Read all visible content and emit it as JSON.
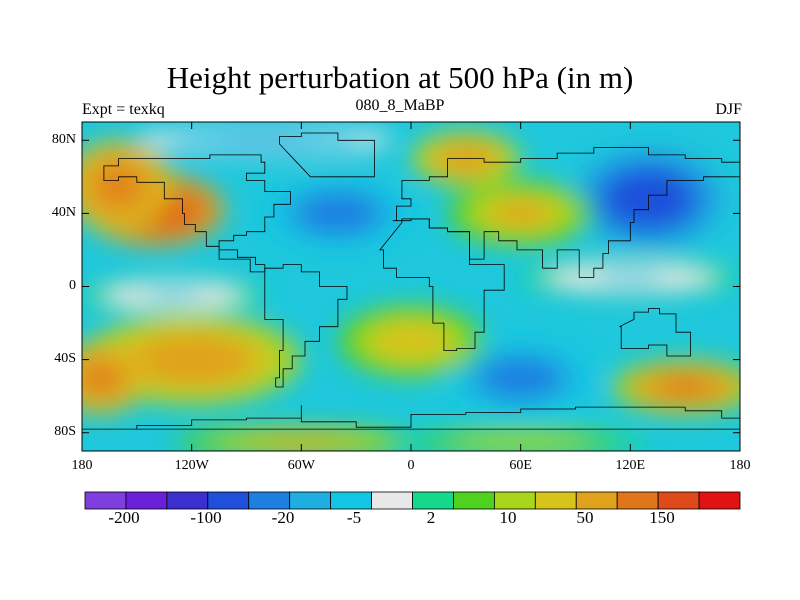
{
  "chart_data": {
    "type": "heatmap",
    "title": "Height perturbation at 500 hPa (in m)",
    "left_string": "Expt = texkq",
    "center_string": "080_8_MaBP",
    "right_string": "DJF",
    "x_range": [
      -180,
      180
    ],
    "y_range": [
      -90,
      90
    ],
    "x_ticks": [
      -180,
      -120,
      -60,
      0,
      60,
      120,
      180
    ],
    "x_tick_labels": [
      "180",
      "120W",
      "60W",
      "0",
      "60E",
      "120E",
      "180"
    ],
    "y_ticks": [
      80,
      40,
      0,
      -40,
      -80
    ],
    "y_tick_labels": [
      "80N",
      "40N",
      "0",
      "40S",
      "80S"
    ],
    "colorbar": {
      "colors": [
        "#7f3fe0",
        "#6a1fd8",
        "#3b2fcf",
        "#1f4fdb",
        "#1f7fe0",
        "#1faee0",
        "#12c6e6",
        "#e8e8e8",
        "#15d88c",
        "#4fd21f",
        "#a8d61a",
        "#d7c31a",
        "#e0a21a",
        "#e0761a",
        "#e04a1a",
        "#e01212"
      ],
      "labels": [
        "-200",
        "-100",
        "-20",
        "-5",
        "2",
        "10",
        "50",
        "150"
      ]
    },
    "anomalies": [
      {
        "lon": -140,
        "lat": 42,
        "value": 165,
        "rx": 38,
        "ry": 20
      },
      {
        "lon": -160,
        "lat": 55,
        "value": 70,
        "rx": 30,
        "ry": 25
      },
      {
        "lon": -40,
        "lat": 40,
        "value": -45,
        "rx": 40,
        "ry": 20
      },
      {
        "lon": 130,
        "lat": 48,
        "value": -90,
        "rx": 42,
        "ry": 28
      },
      {
        "lon": -80,
        "lat": 80,
        "value": -15,
        "rx": 70,
        "ry": 8
      },
      {
        "lon": 30,
        "lat": 70,
        "value": 40,
        "rx": 30,
        "ry": 15
      },
      {
        "lon": 60,
        "lat": 40,
        "value": 25,
        "rx": 40,
        "ry": 18
      },
      {
        "lon": 120,
        "lat": 5,
        "value": -8,
        "rx": 60,
        "ry": 10
      },
      {
        "lon": -130,
        "lat": -5,
        "value": -6,
        "rx": 50,
        "ry": 10
      },
      {
        "lon": -120,
        "lat": -40,
        "value": 50,
        "rx": 60,
        "ry": 25
      },
      {
        "lon": 60,
        "lat": -50,
        "value": -45,
        "rx": 40,
        "ry": 20
      },
      {
        "lon": 150,
        "lat": -55,
        "value": 60,
        "rx": 40,
        "ry": 15
      },
      {
        "lon": -170,
        "lat": -50,
        "value": 70,
        "rx": 25,
        "ry": 20
      },
      {
        "lon": 0,
        "lat": -30,
        "value": 20,
        "rx": 40,
        "ry": 20
      },
      {
        "lon": -60,
        "lat": -85,
        "value": 25,
        "rx": 70,
        "ry": 8
      },
      {
        "lon": 60,
        "lat": -85,
        "value": 10,
        "rx": 70,
        "ry": 8
      }
    ]
  }
}
